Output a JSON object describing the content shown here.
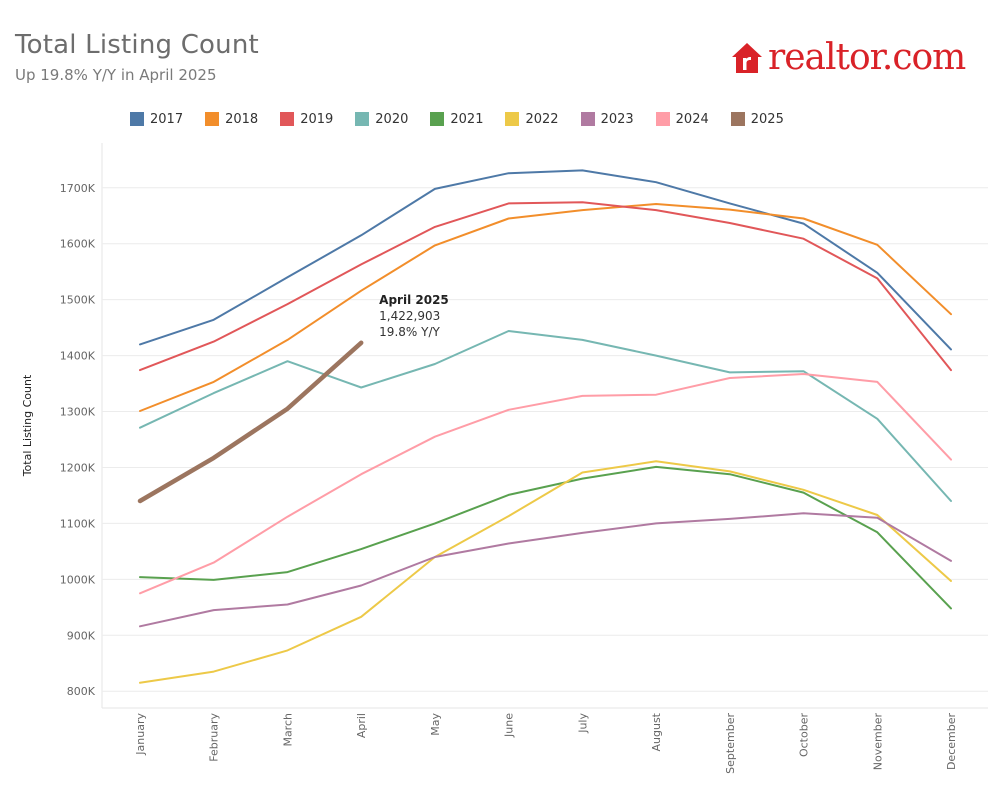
{
  "header": {
    "title": "Total Listing Count",
    "subtitle": "Up 19.8% Y/Y in April 2025"
  },
  "logo": {
    "text": "realtor.com",
    "color": "#d92228",
    "icon": "house-logo-icon"
  },
  "chart_data": {
    "type": "line",
    "ylabel": "Total Listing Count",
    "xlabel": "",
    "ylim": [
      770000,
      1780000
    ],
    "yticks": [
      800000,
      900000,
      1000000,
      1100000,
      1200000,
      1300000,
      1400000,
      1500000,
      1600000,
      1700000
    ],
    "ytick_labels": [
      "800K",
      "900K",
      "1000K",
      "1100K",
      "1200K",
      "1300K",
      "1400K",
      "1500K",
      "1600K",
      "1700K"
    ],
    "grid": "horizontal",
    "legend_position": "top-left",
    "categories": [
      "January",
      "February",
      "March",
      "April",
      "May",
      "June",
      "July",
      "August",
      "September",
      "October",
      "November",
      "December"
    ],
    "series": [
      {
        "name": "2017",
        "color": "#4e79a7",
        "values": [
          1420000,
          1464000,
          1540000,
          1615000,
          1698000,
          1726000,
          1731000,
          1710000,
          1672000,
          1636000,
          1548000,
          1411000
        ]
      },
      {
        "name": "2018",
        "color": "#f28e2b",
        "values": [
          1301000,
          1353000,
          1428000,
          1516000,
          1597000,
          1645000,
          1660000,
          1671000,
          1661000,
          1645000,
          1598000,
          1474000
        ]
      },
      {
        "name": "2019",
        "color": "#e15759",
        "values": [
          1374000,
          1425000,
          1492000,
          1563000,
          1630000,
          1672000,
          1674000,
          1660000,
          1637000,
          1609000,
          1538000,
          1374000
        ]
      },
      {
        "name": "2020",
        "color": "#76b7b2",
        "values": [
          1271000,
          1333000,
          1390000,
          1343000,
          1385000,
          1444000,
          1428000,
          1400000,
          1370000,
          1372000,
          1287000,
          1140000
        ]
      },
      {
        "name": "2021",
        "color": "#59a14f",
        "values": [
          1004000,
          999000,
          1013000,
          1054000,
          1100000,
          1151000,
          1180000,
          1201000,
          1188000,
          1155000,
          1084000,
          948000
        ]
      },
      {
        "name": "2022",
        "color": "#edc948",
        "values": [
          815000,
          835000,
          873000,
          933000,
          1040000,
          1113000,
          1191000,
          1211000,
          1193000,
          1160000,
          1115000,
          997000
        ]
      },
      {
        "name": "2023",
        "color": "#b07aa1",
        "values": [
          916000,
          945000,
          955000,
          989000,
          1040000,
          1064000,
          1083000,
          1100000,
          1108000,
          1118000,
          1110000,
          1033000
        ]
      },
      {
        "name": "2024",
        "color": "#ff9da7",
        "values": [
          975000,
          1030000,
          1112000,
          1188000,
          1255000,
          1303000,
          1328000,
          1330000,
          1360000,
          1367000,
          1353000,
          1214000
        ]
      },
      {
        "name": "2025",
        "color": "#9c755f",
        "values": [
          1140000,
          1217000,
          1305000,
          1422903,
          null,
          null,
          null,
          null,
          null,
          null,
          null,
          null
        ],
        "highlight": true
      }
    ],
    "annotation": {
      "category": "April",
      "series": "2025",
      "lines": [
        "April 2025",
        "1,422,903",
        "19.8% Y/Y"
      ]
    }
  }
}
